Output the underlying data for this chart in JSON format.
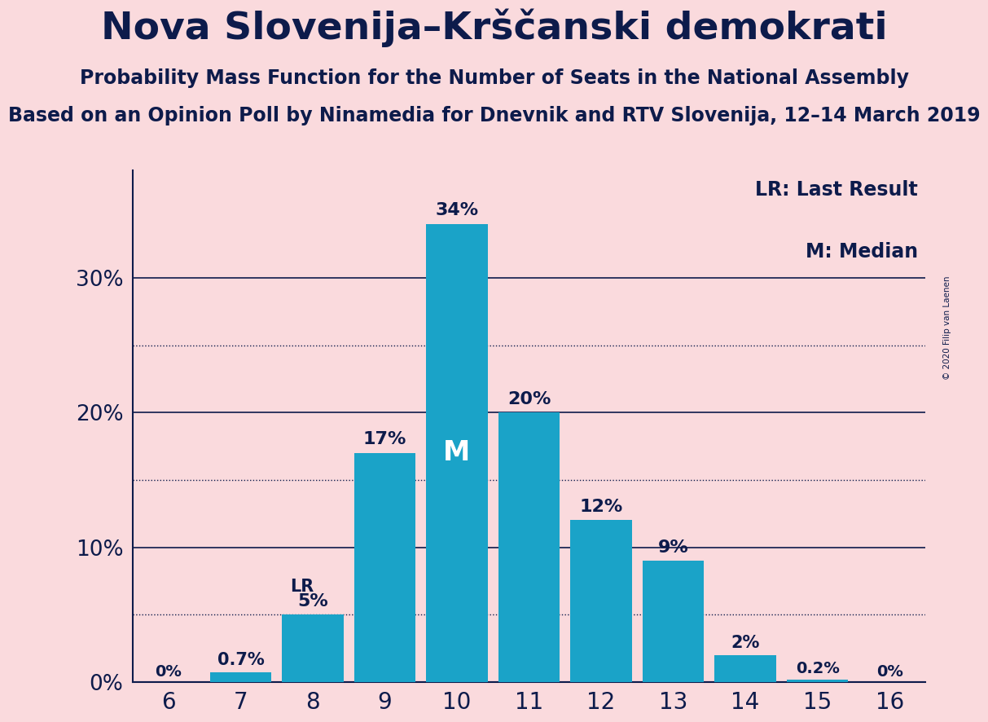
{
  "title": "Nova Slovenija–Krščanski demokrati",
  "subtitle": "Probability Mass Function for the Number of Seats in the National Assembly",
  "subsubtitle": "Based on an Opinion Poll by Ninamedia for Dnevnik and RTV Slovenija, 12–14 March 2019",
  "copyright": "© 2020 Filip van Laenen",
  "categories": [
    6,
    7,
    8,
    9,
    10,
    11,
    12,
    13,
    14,
    15,
    16
  ],
  "values": [
    0.0,
    0.7,
    5.0,
    17.0,
    34.0,
    20.0,
    12.0,
    9.0,
    2.0,
    0.2,
    0.0
  ],
  "labels": [
    "0%",
    "0.7%",
    "5%",
    "17%",
    "34%",
    "20%",
    "12%",
    "9%",
    "2%",
    "0.2%",
    "0%"
  ],
  "bar_color": "#1AA3C8",
  "background_color": "#FADADD",
  "text_color": "#0D1B4B",
  "title_fontsize": 34,
  "subtitle_fontsize": 17,
  "subsubtitle_fontsize": 17,
  "ylabel_ticks": [
    0,
    10,
    20,
    30
  ],
  "dotted_ticks": [
    5,
    15,
    25
  ],
  "ylim": [
    0,
    38
  ],
  "lr_index": 2,
  "median_index": 4,
  "legend_text_lr": "LR: Last Result",
  "legend_text_m": "M: Median"
}
